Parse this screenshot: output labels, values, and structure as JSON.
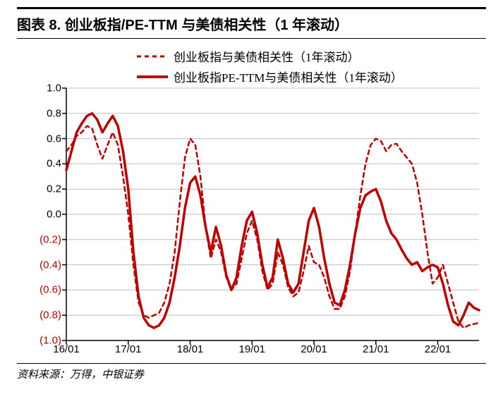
{
  "title": "图表 8. 创业板指/PE-TTM 与美债相关性（1 年滚动）",
  "source": "资料来源：万得，中银证券",
  "chart": {
    "type": "line",
    "background_color": "#ffffff",
    "grid_color": "#bfbfbf",
    "axis_color": "#000000",
    "title_fontsize": 20,
    "label_fontsize": 15,
    "ylim": [
      -1.0,
      1.0
    ],
    "ytick_step": 0.2,
    "yticks": [
      {
        "v": 1.0,
        "label": "1.0",
        "neg": false
      },
      {
        "v": 0.8,
        "label": "0.8",
        "neg": false
      },
      {
        "v": 0.6,
        "label": "0.6",
        "neg": false
      },
      {
        "v": 0.4,
        "label": "0.4",
        "neg": false
      },
      {
        "v": 0.2,
        "label": "0.2",
        "neg": false
      },
      {
        "v": 0.0,
        "label": "0.0",
        "neg": false
      },
      {
        "v": -0.2,
        "label": "(0.2)",
        "neg": true
      },
      {
        "v": -0.4,
        "label": "(0.4)",
        "neg": true
      },
      {
        "v": -0.6,
        "label": "(0.6)",
        "neg": true
      },
      {
        "v": -0.8,
        "label": "(0.8)",
        "neg": true
      },
      {
        "v": -1.0,
        "label": "(1.0)",
        "neg": true
      }
    ],
    "xlim": [
      0,
      80
    ],
    "xticks": [
      {
        "x": 0,
        "label": "16/01"
      },
      {
        "x": 12,
        "label": "17/01"
      },
      {
        "x": 24,
        "label": "18/01"
      },
      {
        "x": 36,
        "label": "19/01"
      },
      {
        "x": 48,
        "label": "20/01"
      },
      {
        "x": 60,
        "label": "21/01"
      },
      {
        "x": 72,
        "label": "22/01"
      }
    ],
    "legend": {
      "position": "top",
      "items": [
        {
          "key": "series_a",
          "label": "创业板指与美债相关性（1年滚动）"
        },
        {
          "key": "series_b",
          "label": "创业板指PE-TTM与美债相关性（1年滚动）"
        }
      ]
    },
    "series_a": {
      "name": "创业板指与美债相关性（1年滚动）",
      "color": "#c00000",
      "line_width": 2.5,
      "dash": "6,5",
      "data": [
        [
          0,
          0.5
        ],
        [
          1,
          0.55
        ],
        [
          2,
          0.62
        ],
        [
          3,
          0.65
        ],
        [
          4,
          0.7
        ],
        [
          5,
          0.68
        ],
        [
          6,
          0.55
        ],
        [
          7,
          0.44
        ],
        [
          8,
          0.55
        ],
        [
          9,
          0.65
        ],
        [
          10,
          0.55
        ],
        [
          11,
          0.3
        ],
        [
          12,
          0.0
        ],
        [
          13,
          -0.4
        ],
        [
          14,
          -0.7
        ],
        [
          15,
          -0.8
        ],
        [
          16,
          -0.82
        ],
        [
          17,
          -0.8
        ],
        [
          18,
          -0.78
        ],
        [
          19,
          -0.7
        ],
        [
          20,
          -0.55
        ],
        [
          21,
          -0.3
        ],
        [
          22,
          0.1
        ],
        [
          23,
          0.45
        ],
        [
          24,
          0.6
        ],
        [
          25,
          0.55
        ],
        [
          26,
          0.3
        ],
        [
          27,
          -0.1
        ],
        [
          28,
          -0.35
        ],
        [
          29,
          -0.2
        ],
        [
          30,
          -0.3
        ],
        [
          31,
          -0.5
        ],
        [
          32,
          -0.6
        ],
        [
          33,
          -0.55
        ],
        [
          34,
          -0.35
        ],
        [
          35,
          -0.15
        ],
        [
          36,
          -0.05
        ],
        [
          37,
          -0.2
        ],
        [
          38,
          -0.45
        ],
        [
          39,
          -0.6
        ],
        [
          40,
          -0.55
        ],
        [
          41,
          -0.3
        ],
        [
          42,
          -0.4
        ],
        [
          43,
          -0.58
        ],
        [
          44,
          -0.65
        ],
        [
          45,
          -0.62
        ],
        [
          46,
          -0.45
        ],
        [
          47,
          -0.25
        ],
        [
          48,
          -0.38
        ],
        [
          49,
          -0.4
        ],
        [
          50,
          -0.5
        ],
        [
          51,
          -0.65
        ],
        [
          52,
          -0.75
        ],
        [
          53,
          -0.75
        ],
        [
          54,
          -0.65
        ],
        [
          55,
          -0.45
        ],
        [
          56,
          -0.15
        ],
        [
          57,
          0.15
        ],
        [
          58,
          0.4
        ],
        [
          59,
          0.55
        ],
        [
          60,
          0.6
        ],
        [
          61,
          0.58
        ],
        [
          62,
          0.5
        ],
        [
          63,
          0.55
        ],
        [
          64,
          0.56
        ],
        [
          65,
          0.5
        ],
        [
          66,
          0.45
        ],
        [
          67,
          0.4
        ],
        [
          68,
          0.25
        ],
        [
          69,
          0.0
        ],
        [
          70,
          -0.3
        ],
        [
          71,
          -0.55
        ],
        [
          72,
          -0.5
        ],
        [
          73,
          -0.4
        ],
        [
          74,
          -0.55
        ],
        [
          75,
          -0.7
        ],
        [
          76,
          -0.85
        ],
        [
          77,
          -0.9
        ],
        [
          78,
          -0.88
        ],
        [
          79,
          -0.87
        ],
        [
          80,
          -0.86
        ]
      ]
    },
    "series_b": {
      "name": "创业板指PE-TTM与美债相关性（1年滚动）",
      "color": "#c00000",
      "line_width": 3.5,
      "dash": "none",
      "data": [
        [
          0,
          0.35
        ],
        [
          1,
          0.5
        ],
        [
          2,
          0.65
        ],
        [
          3,
          0.72
        ],
        [
          4,
          0.78
        ],
        [
          5,
          0.8
        ],
        [
          6,
          0.75
        ],
        [
          7,
          0.65
        ],
        [
          8,
          0.72
        ],
        [
          9,
          0.78
        ],
        [
          10,
          0.7
        ],
        [
          11,
          0.5
        ],
        [
          12,
          0.2
        ],
        [
          13,
          -0.3
        ],
        [
          14,
          -0.65
        ],
        [
          15,
          -0.82
        ],
        [
          16,
          -0.88
        ],
        [
          17,
          -0.9
        ],
        [
          18,
          -0.88
        ],
        [
          19,
          -0.82
        ],
        [
          20,
          -0.7
        ],
        [
          21,
          -0.5
        ],
        [
          22,
          -0.25
        ],
        [
          23,
          0.05
        ],
        [
          24,
          0.25
        ],
        [
          25,
          0.3
        ],
        [
          26,
          0.15
        ],
        [
          27,
          -0.1
        ],
        [
          28,
          -0.3
        ],
        [
          29,
          -0.1
        ],
        [
          30,
          -0.25
        ],
        [
          31,
          -0.48
        ],
        [
          32,
          -0.6
        ],
        [
          33,
          -0.5
        ],
        [
          34,
          -0.25
        ],
        [
          35,
          -0.05
        ],
        [
          36,
          0.02
        ],
        [
          37,
          -0.15
        ],
        [
          38,
          -0.4
        ],
        [
          39,
          -0.58
        ],
        [
          40,
          -0.5
        ],
        [
          41,
          -0.2
        ],
        [
          42,
          -0.35
        ],
        [
          43,
          -0.55
        ],
        [
          44,
          -0.62
        ],
        [
          45,
          -0.55
        ],
        [
          46,
          -0.3
        ],
        [
          47,
          -0.05
        ],
        [
          48,
          0.05
        ],
        [
          49,
          -0.1
        ],
        [
          50,
          -0.35
        ],
        [
          51,
          -0.55
        ],
        [
          52,
          -0.7
        ],
        [
          53,
          -0.72
        ],
        [
          54,
          -0.6
        ],
        [
          55,
          -0.4
        ],
        [
          56,
          -0.15
        ],
        [
          57,
          0.05
        ],
        [
          58,
          0.15
        ],
        [
          59,
          0.18
        ],
        [
          60,
          0.2
        ],
        [
          61,
          0.1
        ],
        [
          62,
          -0.05
        ],
        [
          63,
          -0.15
        ],
        [
          64,
          -0.2
        ],
        [
          65,
          -0.28
        ],
        [
          66,
          -0.35
        ],
        [
          67,
          -0.4
        ],
        [
          68,
          -0.38
        ],
        [
          69,
          -0.45
        ],
        [
          70,
          -0.42
        ],
        [
          71,
          -0.4
        ],
        [
          72,
          -0.42
        ],
        [
          73,
          -0.55
        ],
        [
          74,
          -0.72
        ],
        [
          75,
          -0.85
        ],
        [
          76,
          -0.88
        ],
        [
          77,
          -0.8
        ],
        [
          78,
          -0.7
        ],
        [
          79,
          -0.74
        ],
        [
          80,
          -0.76
        ]
      ]
    }
  }
}
